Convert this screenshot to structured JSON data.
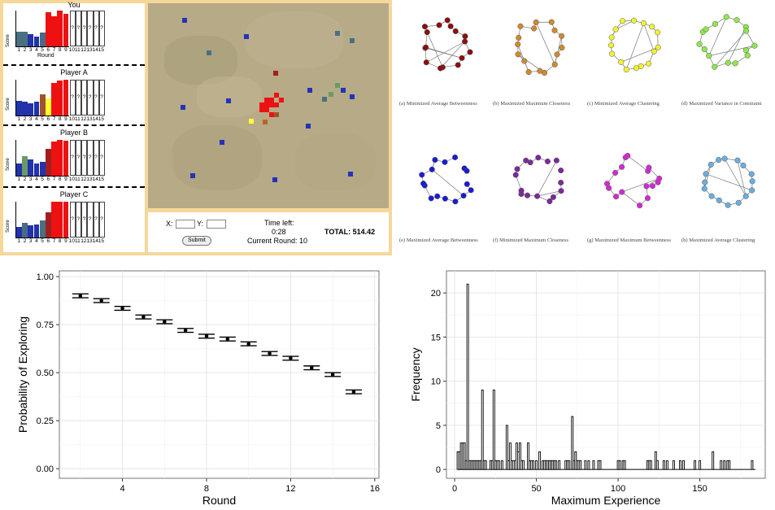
{
  "game": {
    "players": [
      {
        "name": "You",
        "score_label": "Score",
        "round_label": "Round",
        "bars": [
          {
            "h": 0.42,
            "c": "#4a7080"
          },
          {
            "h": 0.42,
            "c": "#4a7080"
          },
          {
            "h": 0.33,
            "c": "#2233aa"
          },
          {
            "h": 0.28,
            "c": "#2233aa"
          },
          {
            "h": 0.38,
            "c": "#4a6a88"
          },
          {
            "h": 0.95,
            "c": "#ee1111"
          },
          {
            "h": 0.85,
            "c": "#ee1111"
          },
          {
            "h": 1.0,
            "c": "#ee1111"
          },
          {
            "h": 0.9,
            "c": "#ee1111"
          }
        ]
      },
      {
        "name": "Player A",
        "score_label": "Score",
        "round_label": "",
        "bars": [
          {
            "h": 0.42,
            "c": "#2233aa"
          },
          {
            "h": 0.38,
            "c": "#2233aa"
          },
          {
            "h": 0.33,
            "c": "#2233aa"
          },
          {
            "h": 0.38,
            "c": "#2233aa"
          },
          {
            "h": 0.6,
            "c": "#a0522d"
          },
          {
            "h": 0.48,
            "c": "#ffff33"
          },
          {
            "h": 0.92,
            "c": "#ee1111"
          },
          {
            "h": 0.98,
            "c": "#ee1111"
          },
          {
            "h": 1.0,
            "c": "#ee1111"
          }
        ]
      },
      {
        "name": "Player B",
        "score_label": "Score",
        "round_label": "",
        "bars": [
          {
            "h": 0.33,
            "c": "#2233aa"
          },
          {
            "h": 0.55,
            "c": "#6a9a6a"
          },
          {
            "h": 0.45,
            "c": "#2233aa"
          },
          {
            "h": 0.33,
            "c": "#2233aa"
          },
          {
            "h": 0.38,
            "c": "#2233aa"
          },
          {
            "h": 0.75,
            "c": "#a02020"
          },
          {
            "h": 0.95,
            "c": "#ee1111"
          },
          {
            "h": 1.0,
            "c": "#ee1111"
          },
          {
            "h": 0.98,
            "c": "#ee1111"
          }
        ]
      },
      {
        "name": "Player C",
        "score_label": "Score",
        "round_label": "",
        "bars": [
          {
            "h": 0.3,
            "c": "#2233aa"
          },
          {
            "h": 0.4,
            "c": "#4a6a88"
          },
          {
            "h": 0.33,
            "c": "#2233aa"
          },
          {
            "h": 0.36,
            "c": "#2233aa"
          },
          {
            "h": 0.48,
            "c": "#4a7080"
          },
          {
            "h": 0.7,
            "c": "#a02020"
          },
          {
            "h": 1.0,
            "c": "#ee1111"
          },
          {
            "h": 1.0,
            "c": "#ee1111"
          },
          {
            "h": 1.0,
            "c": "#ee1111"
          }
        ]
      }
    ],
    "round_ticks": [
      "1",
      "2",
      "3",
      "4",
      "5",
      "6",
      "7",
      "8",
      "9",
      "10",
      "11",
      "12",
      "13",
      "14",
      "15"
    ],
    "unknown_mark": "?",
    "x_label": "X:",
    "y_label": "Y:",
    "submit_label": "Submit",
    "time_left_label": "Time left:",
    "time_left_value": "0:28",
    "current_round_text": "Current Round: 10",
    "total_text": "TOTAL: 514.42"
  },
  "networks": [
    {
      "color": "#8b0e0e",
      "caption": "(a) Minimized Average Betweenness"
    },
    {
      "color": "#d08a2c",
      "caption": "(b) Maximized Maximum Closeness"
    },
    {
      "color": "#f2f233",
      "caption": "(c) Minimized Average Clustering"
    },
    {
      "color": "#8ee84a",
      "caption": "(d) Maximized Variance in Constraint"
    },
    {
      "color": "#1a1ad8",
      "caption": "(e) Maximized Average Betweenness"
    },
    {
      "color": "#7a2a9a",
      "caption": "(f) Minimized Maximum Closeness"
    },
    {
      "color": "#d22ad2",
      "caption": "(g) Maximized Maximum Betweenness"
    },
    {
      "color": "#6aaee0",
      "caption": "(h) Maximized Average Clustering"
    }
  ],
  "chart_data": [
    {
      "type": "scatter",
      "xlabel": "Round",
      "ylabel": "Probability of Exploring",
      "xlim": [
        1,
        16.2
      ],
      "ylim": [
        -0.05,
        1.03
      ],
      "xticks": [
        "4",
        "8",
        "12",
        "16"
      ],
      "yticks": [
        "0.00",
        "0.25",
        "0.50",
        "0.75",
        "1.00"
      ],
      "x": [
        2,
        3,
        4,
        5,
        6,
        7,
        8,
        9,
        10,
        11,
        12,
        13,
        14,
        15
      ],
      "y": [
        0.9,
        0.875,
        0.835,
        0.79,
        0.765,
        0.72,
        0.69,
        0.675,
        0.65,
        0.6,
        0.575,
        0.525,
        0.49,
        0.4
      ],
      "error": [
        0.01,
        0.01,
        0.01,
        0.01,
        0.01,
        0.01,
        0.01,
        0.01,
        0.01,
        0.01,
        0.01,
        0.01,
        0.01,
        0.01
      ],
      "grid": true
    },
    {
      "type": "bar",
      "xlabel": "Maximum Experience",
      "ylabel": "Frequency",
      "xlim": [
        -5,
        190
      ],
      "ylim": [
        -1,
        22.5
      ],
      "xticks": [
        "0",
        "50",
        "100",
        "150"
      ],
      "yticks": [
        "0",
        "5",
        "10",
        "15",
        "20"
      ],
      "x": [
        2,
        3,
        4,
        5,
        6,
        7,
        8,
        9,
        10,
        11,
        12,
        13,
        14,
        15,
        16,
        17,
        18,
        19,
        22,
        23,
        24,
        25,
        26,
        27,
        29,
        32,
        33,
        34,
        35,
        36,
        37,
        38,
        39,
        40,
        41,
        42,
        45,
        46,
        47,
        48,
        50,
        52,
        54,
        55,
        56,
        57,
        58,
        59,
        60,
        61,
        62,
        64,
        68,
        69,
        70,
        72,
        73,
        74,
        75,
        76,
        77,
        80,
        82,
        85,
        88,
        89,
        100,
        101,
        103,
        104,
        118,
        119,
        120,
        123,
        124,
        128,
        130,
        134,
        138,
        140,
        147,
        150,
        158,
        163,
        165,
        167,
        168,
        182
      ],
      "values": [
        2,
        2,
        3,
        3,
        3,
        1,
        21,
        1,
        1,
        1,
        1,
        1,
        1,
        1,
        1,
        9,
        1,
        1,
        1,
        1,
        9,
        1,
        1,
        1,
        1,
        5,
        1,
        3,
        1,
        1,
        1,
        3,
        2,
        3,
        1,
        1,
        3,
        1,
        1,
        1,
        1,
        2,
        1,
        1,
        1,
        1,
        1,
        1,
        1,
        1,
        1,
        1,
        1,
        1,
        1,
        6,
        1,
        2,
        1,
        1,
        1,
        1,
        1,
        1,
        1,
        1,
        1,
        1,
        1,
        1,
        1,
        1,
        1,
        2,
        1,
        1,
        1,
        1,
        1,
        1,
        1,
        1,
        2,
        1,
        1,
        1,
        1,
        1
      ],
      "grid": true
    }
  ]
}
